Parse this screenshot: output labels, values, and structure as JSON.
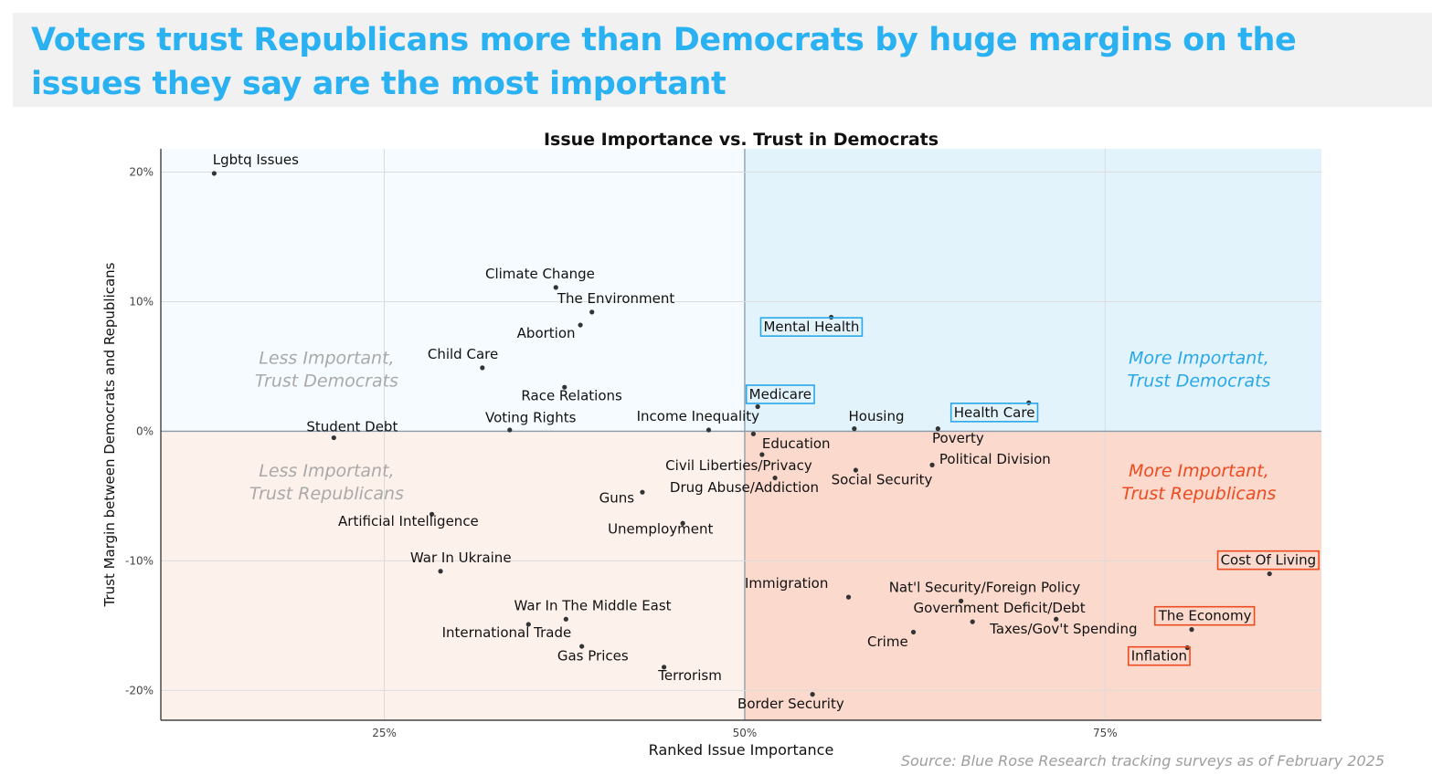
{
  "headline": "Voters trust Republicans more than Democrats by huge margins on the issues they say are the most important",
  "source": "Source: Blue Rose Research tracking surveys as of February 2025",
  "colors": {
    "headline": "#29b1f2",
    "dem_quadrant": "#e2f3fc",
    "dem_quadrant_faint": "#f5fbfe",
    "rep_quadrant": "#fbd9cd",
    "rep_quadrant_faint": "#fdf1ec",
    "dem_accent": "#29a8e8",
    "rep_accent": "#ee4a1f",
    "faint_label": "#a9a9a9",
    "point": "#333333"
  },
  "chart_data": {
    "type": "scatter",
    "title": "Issue Importance vs. Trust in Democrats",
    "xlabel": "Ranked Issue Importance",
    "ylabel": "Trust Margin between Democrats and Republicans",
    "xlim": [
      0.095,
      0.9
    ],
    "ylim": [
      -0.223,
      0.218
    ],
    "xticks": [
      0.25,
      0.5,
      0.75
    ],
    "xtick_labels": [
      "25%",
      "50%",
      "75%"
    ],
    "yticks": [
      0.2,
      0.1,
      0.0,
      -0.1,
      -0.2
    ],
    "ytick_labels": [
      "20%",
      "10%",
      "0%",
      "-10%",
      "-20%"
    ],
    "grid": true,
    "quadrant_labels": [
      {
        "lines": [
          "Less Important,",
          "Trust Democrats"
        ],
        "x": 0.21,
        "y": 0.052,
        "style": "faint"
      },
      {
        "lines": [
          "More Important,",
          "Trust Democrats"
        ],
        "x": 0.815,
        "y": 0.052,
        "style": "dem"
      },
      {
        "lines": [
          "Less Important,",
          "Trust Republicans"
        ],
        "x": 0.21,
        "y": -0.035,
        "style": "faint"
      },
      {
        "lines": [
          "More Important,",
          "Trust Republicans"
        ],
        "x": 0.815,
        "y": -0.035,
        "style": "rep"
      }
    ],
    "points": [
      {
        "label": "Lgbtq Issues",
        "x": 0.132,
        "y": 0.199,
        "lx": 0.131,
        "ly": 0.206,
        "anchor": "start"
      },
      {
        "label": "Climate Change",
        "x": 0.369,
        "y": 0.111,
        "lx": 0.32,
        "ly": 0.118,
        "anchor": "start"
      },
      {
        "label": "The Environment",
        "x": 0.394,
        "y": 0.092,
        "lx": 0.37,
        "ly": 0.099,
        "anchor": "start"
      },
      {
        "label": "Abortion",
        "x": 0.386,
        "y": 0.082,
        "lx": 0.342,
        "ly": 0.072,
        "anchor": "start"
      },
      {
        "label": "Child Care",
        "x": 0.318,
        "y": 0.049,
        "lx": 0.28,
        "ly": 0.056,
        "anchor": "start"
      },
      {
        "label": "Race Relations",
        "x": 0.375,
        "y": 0.034,
        "lx": 0.345,
        "ly": 0.024,
        "anchor": "start"
      },
      {
        "label": "Voting Rights",
        "x": 0.337,
        "y": 0.001,
        "lx": 0.32,
        "ly": 0.007,
        "anchor": "start"
      },
      {
        "label": "Student Debt",
        "x": 0.215,
        "y": -0.005,
        "lx": 0.196,
        "ly": 0.0,
        "anchor": "start"
      },
      {
        "label": "Income Inequality",
        "x": 0.475,
        "y": 0.001,
        "lx": 0.425,
        "ly": 0.008,
        "anchor": "start"
      },
      {
        "label": "Mental Health",
        "x": 0.56,
        "y": 0.088,
        "lx": 0.513,
        "ly": 0.077,
        "anchor": "start",
        "box": "dem"
      },
      {
        "label": "Medicare",
        "x": 0.509,
        "y": 0.019,
        "lx": 0.503,
        "ly": 0.025,
        "anchor": "start",
        "box": "dem"
      },
      {
        "label": "Housing",
        "x": 0.576,
        "y": 0.002,
        "lx": 0.572,
        "ly": 0.008,
        "anchor": "start"
      },
      {
        "label": "Health Care",
        "x": 0.697,
        "y": 0.022,
        "lx": 0.645,
        "ly": 0.011,
        "anchor": "start",
        "box": "dem"
      },
      {
        "label": "Poverty",
        "x": 0.634,
        "y": 0.002,
        "lx": 0.63,
        "ly": -0.009,
        "anchor": "start"
      },
      {
        "label": "Education",
        "x": 0.506,
        "y": -0.002,
        "lx": 0.512,
        "ly": -0.013,
        "anchor": "start"
      },
      {
        "label": "Political Division",
        "x": 0.63,
        "y": -0.026,
        "lx": 0.635,
        "ly": -0.025,
        "anchor": "start"
      },
      {
        "label": "Civil Liberties/Privacy",
        "x": 0.512,
        "y": -0.018,
        "lx": 0.445,
        "ly": -0.03,
        "anchor": "start"
      },
      {
        "label": "Social Security",
        "x": 0.577,
        "y": -0.03,
        "lx": 0.56,
        "ly": -0.041,
        "anchor": "start"
      },
      {
        "label": "Drug Abuse/Addiction",
        "x": 0.521,
        "y": -0.036,
        "lx": 0.448,
        "ly": -0.047,
        "anchor": "start"
      },
      {
        "label": "Guns",
        "x": 0.429,
        "y": -0.047,
        "lx": 0.399,
        "ly": -0.055,
        "anchor": "start"
      },
      {
        "label": "Unemployment",
        "x": 0.457,
        "y": -0.071,
        "lx": 0.405,
        "ly": -0.079,
        "anchor": "start"
      },
      {
        "label": "Artificial Intelligence",
        "x": 0.283,
        "y": -0.064,
        "lx": 0.218,
        "ly": -0.073,
        "anchor": "start"
      },
      {
        "label": "War In Ukraine",
        "x": 0.289,
        "y": -0.108,
        "lx": 0.268,
        "ly": -0.101,
        "anchor": "start"
      },
      {
        "label": "Immigration",
        "x": 0.572,
        "y": -0.128,
        "lx": 0.5,
        "ly": -0.121,
        "anchor": "start"
      },
      {
        "label": "Nat'l Security/Foreign Policy",
        "x": 0.65,
        "y": -0.131,
        "lx": 0.6,
        "ly": -0.124,
        "anchor": "start"
      },
      {
        "label": "Government Deficit/Debt",
        "x": 0.658,
        "y": -0.147,
        "lx": 0.617,
        "ly": -0.14,
        "anchor": "start"
      },
      {
        "label": "Taxes/Gov't Spending",
        "x": 0.716,
        "y": -0.145,
        "lx": 0.67,
        "ly": -0.156,
        "anchor": "start"
      },
      {
        "label": "Crime",
        "x": 0.617,
        "y": -0.155,
        "lx": 0.585,
        "ly": -0.166,
        "anchor": "start"
      },
      {
        "label": "Cost Of Living",
        "x": 0.864,
        "y": -0.11,
        "lx": 0.83,
        "ly": -0.103,
        "anchor": "start",
        "box": "rep"
      },
      {
        "label": "The Economy",
        "x": 0.81,
        "y": -0.153,
        "lx": 0.787,
        "ly": -0.146,
        "anchor": "start",
        "box": "rep"
      },
      {
        "label": "Inflation",
        "x": 0.807,
        "y": -0.167,
        "lx": 0.768,
        "ly": -0.177,
        "anchor": "start",
        "box": "rep"
      },
      {
        "label": "War In The Middle East",
        "x": 0.376,
        "y": -0.145,
        "lx": 0.34,
        "ly": -0.138,
        "anchor": "start"
      },
      {
        "label": "International Trade",
        "x": 0.35,
        "y": -0.149,
        "lx": 0.29,
        "ly": -0.159,
        "anchor": "start"
      },
      {
        "label": "Gas Prices",
        "x": 0.387,
        "y": -0.166,
        "lx": 0.37,
        "ly": -0.177,
        "anchor": "start"
      },
      {
        "label": "Terrorism",
        "x": 0.444,
        "y": -0.182,
        "lx": 0.44,
        "ly": -0.192,
        "anchor": "start"
      },
      {
        "label": "Border Security",
        "x": 0.547,
        "y": -0.203,
        "lx": 0.495,
        "ly": -0.214,
        "anchor": "start"
      }
    ]
  }
}
